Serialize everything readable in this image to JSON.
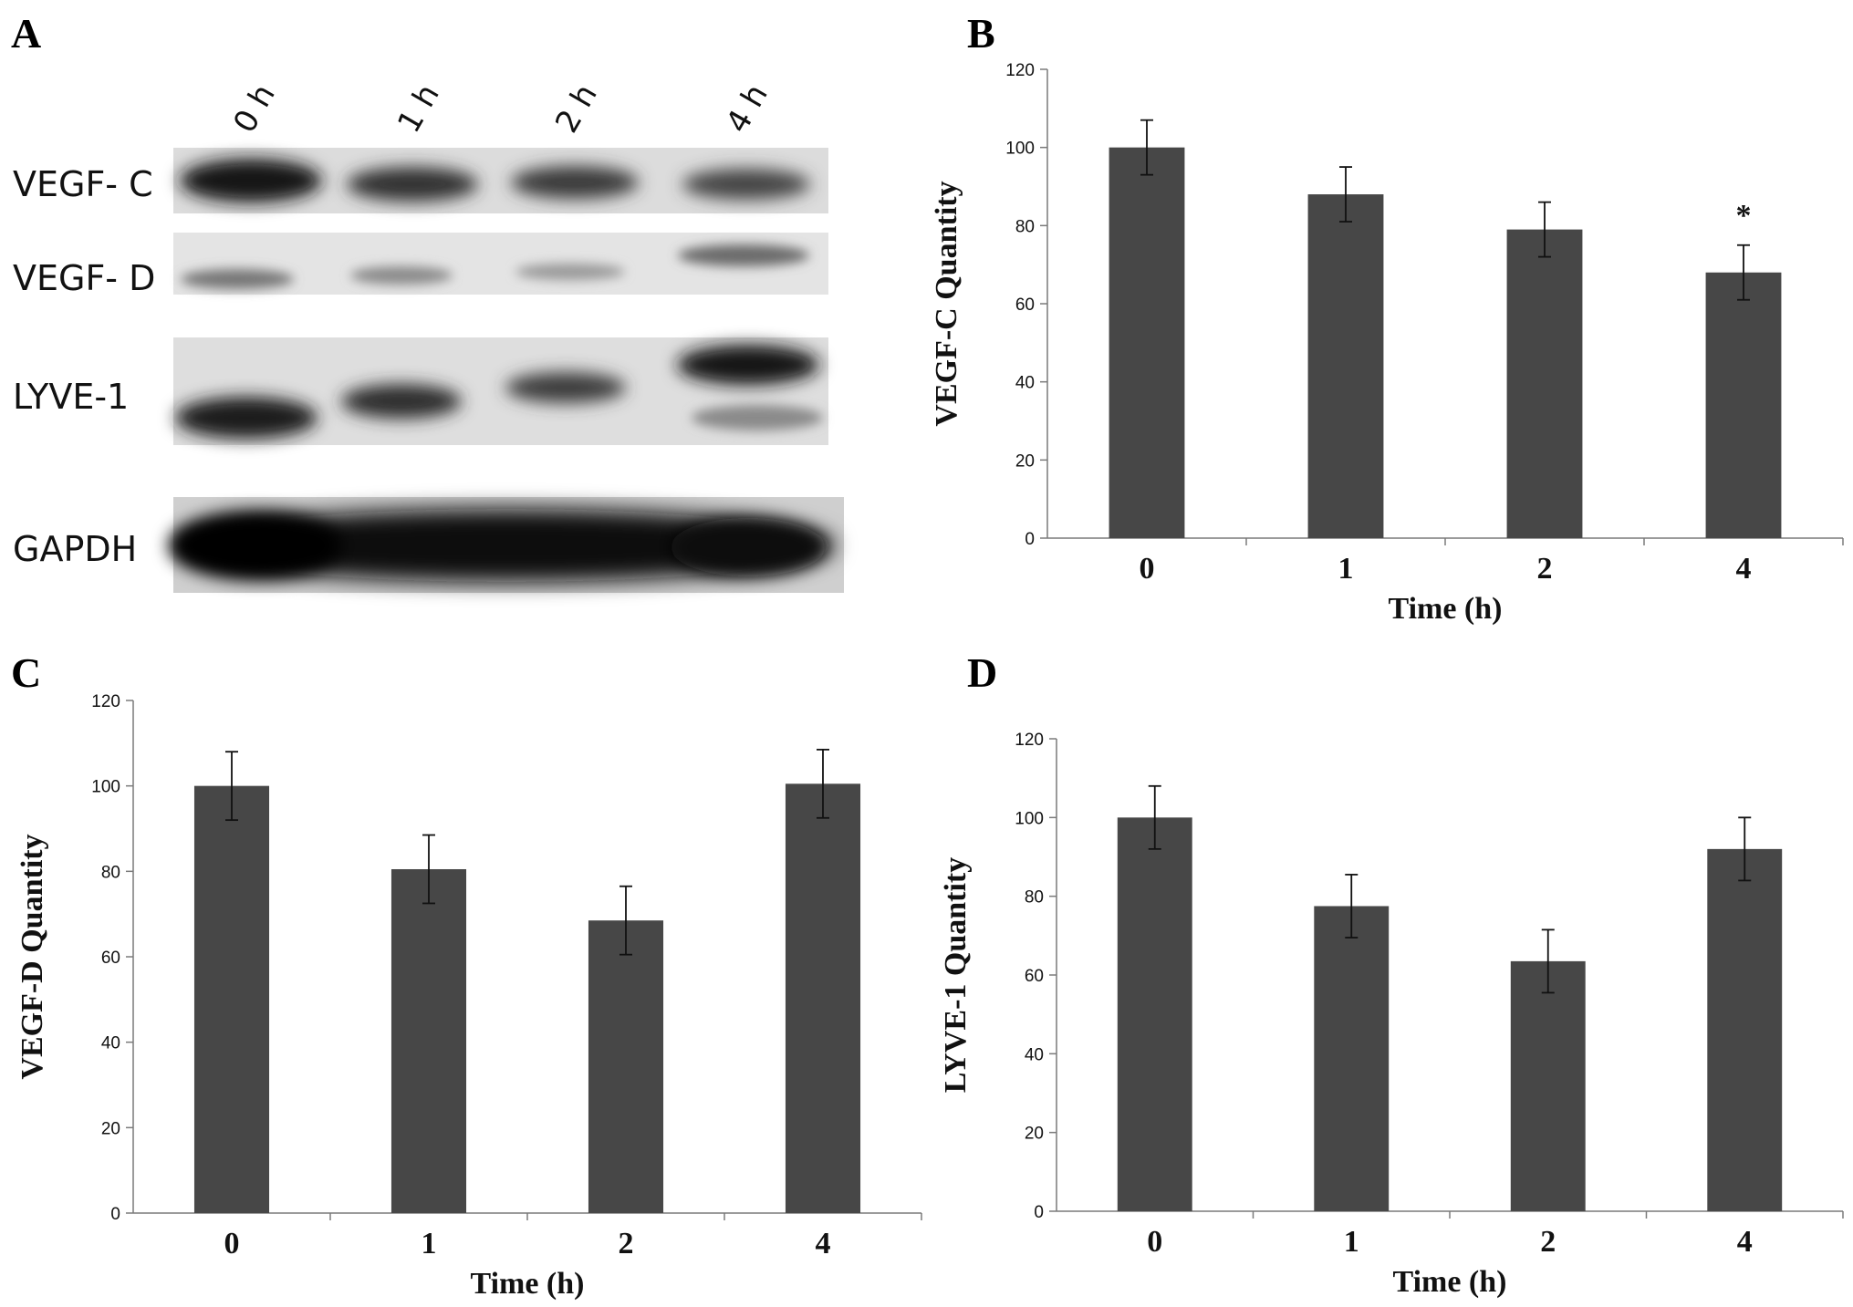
{
  "panels": {
    "A": "A",
    "B": "B",
    "C": "C",
    "D": "D"
  },
  "blot": {
    "lanes": [
      "0 h",
      "1 h",
      "2 h",
      "4 h"
    ],
    "proteins": [
      "VEGF- C",
      "VEGF- D",
      "LYVE-1",
      "GAPDH"
    ]
  },
  "colors": {
    "bar": "#474747",
    "axis": "#7a7a7a",
    "text": "#111111"
  },
  "chart_data": [
    {
      "panel": "B",
      "type": "bar",
      "categories": [
        "0",
        "1",
        "2",
        "4"
      ],
      "values": [
        100,
        88,
        79,
        68
      ],
      "errors": [
        7,
        7,
        7,
        7
      ],
      "annotations": [
        "",
        "",
        "",
        "*"
      ],
      "xlabel": "Time (h)",
      "ylabel": "VEGF-C Quantity",
      "ylim": [
        0,
        120
      ],
      "yticks": [
        0,
        20,
        40,
        60,
        80,
        100,
        120
      ],
      "grid": false
    },
    {
      "panel": "C",
      "type": "bar",
      "categories": [
        "0",
        "1",
        "2",
        "4"
      ],
      "values": [
        100,
        80.5,
        68.5,
        100.5
      ],
      "errors": [
        8,
        8,
        8,
        8
      ],
      "annotations": [
        "",
        "",
        "",
        ""
      ],
      "xlabel": "Time (h)",
      "ylabel": "VEGF-D Quantity",
      "ylim": [
        0,
        120
      ],
      "yticks": [
        0,
        20,
        40,
        60,
        80,
        100,
        120
      ],
      "grid": false
    },
    {
      "panel": "D",
      "type": "bar",
      "categories": [
        "0",
        "1",
        "2",
        "4"
      ],
      "values": [
        100,
        77.5,
        63.5,
        92
      ],
      "errors": [
        8,
        8,
        8,
        8
      ],
      "annotations": [
        "",
        "",
        "",
        ""
      ],
      "xlabel": "Time (h)",
      "ylabel": "LYVE-1 Quantity",
      "ylim": [
        0,
        120
      ],
      "yticks": [
        0,
        20,
        40,
        60,
        80,
        100,
        120
      ],
      "grid": false
    }
  ]
}
